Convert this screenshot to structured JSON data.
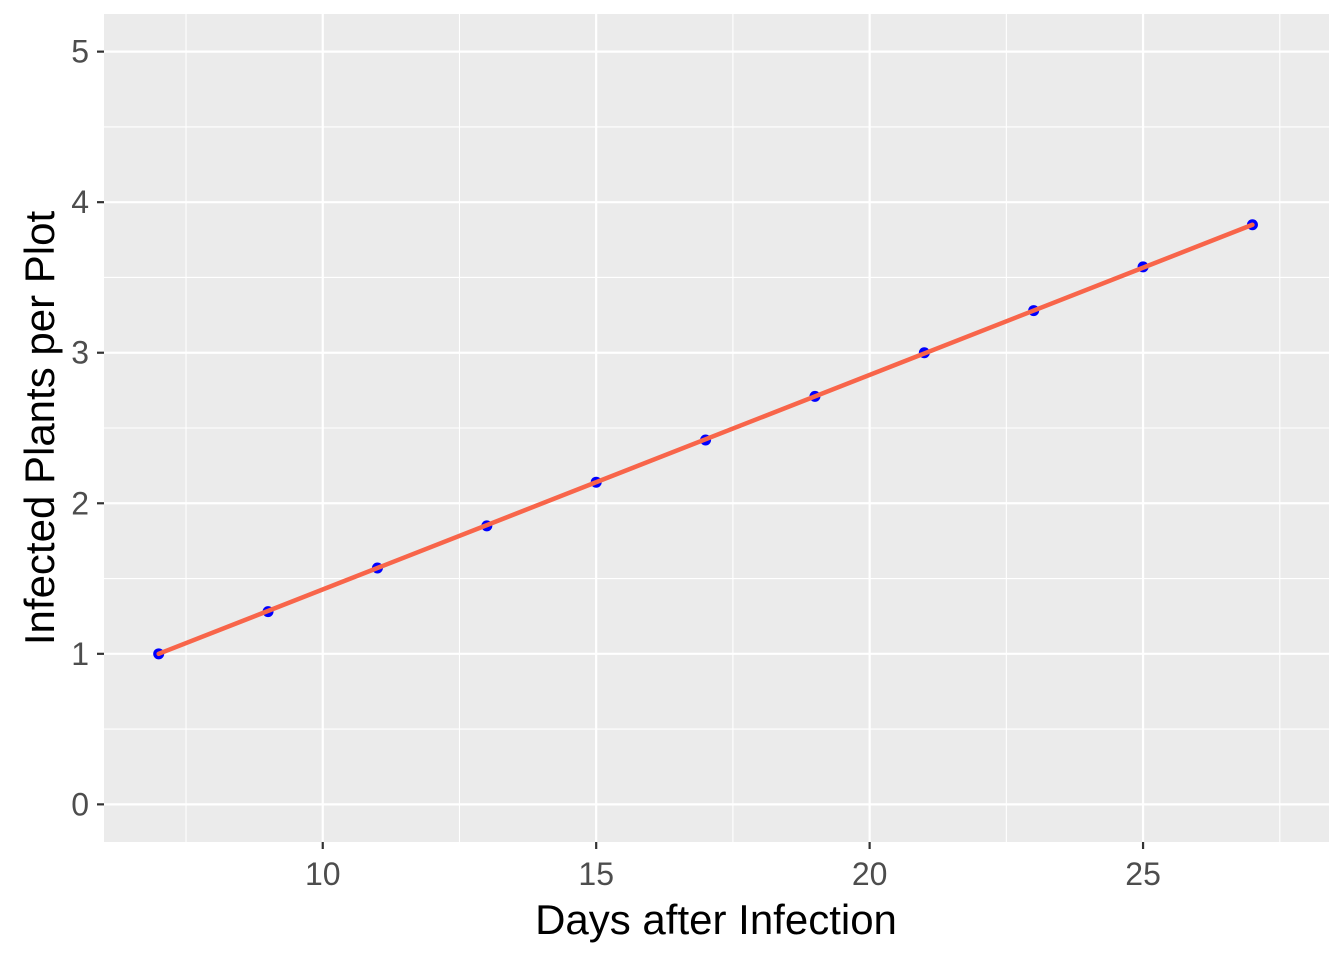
{
  "chart_data": {
    "type": "line",
    "xlabel": "Days after Infection",
    "ylabel": "Infected Plants per Plot",
    "xlim": [
      6.0,
      28.4
    ],
    "ylim": [
      -0.25,
      5.25
    ],
    "x_ticks": [
      10,
      15,
      20,
      25
    ],
    "y_ticks": [
      0,
      1,
      2,
      3,
      4,
      5
    ],
    "grid": true,
    "background_color": "#ebebeb",
    "grid_color": "#ffffff",
    "series": [
      {
        "kind": "points",
        "color": "#0000ff",
        "x": [
          7,
          9,
          11,
          13,
          15,
          17,
          19,
          21,
          23,
          25,
          27
        ],
        "y": [
          1.0,
          1.28,
          1.57,
          1.85,
          2.14,
          2.42,
          2.71,
          3.0,
          3.28,
          3.57,
          3.85
        ]
      },
      {
        "kind": "fitted-line",
        "color": "#f8654a",
        "x": [
          7,
          27
        ],
        "y": [
          1.0,
          3.85
        ]
      }
    ]
  }
}
